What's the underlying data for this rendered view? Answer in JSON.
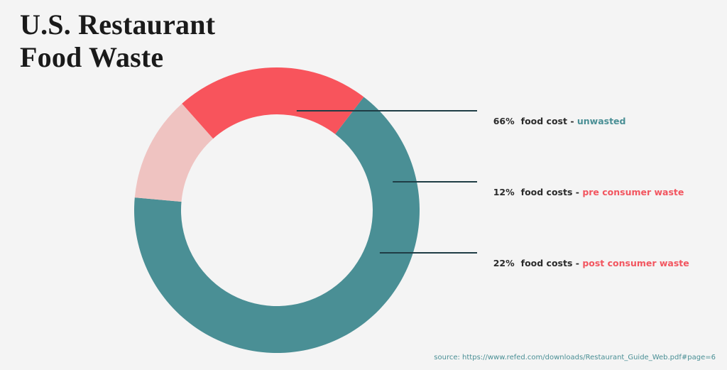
{
  "title_lines": [
    "U.S. Restaurant",
    "Food Waste"
  ],
  "source": "source: https://www.refed.com/downloads/Restaurant_Guide_Web.pdf#page=6",
  "chart_data": {
    "type": "pie",
    "donut": true,
    "title": "U.S. Restaurant Food Waste",
    "slices": [
      {
        "label": "unwasted",
        "value": 66,
        "color": "#4a8f95"
      },
      {
        "label": "pre consumer waste",
        "value": 12,
        "color": "#efc3c1"
      },
      {
        "label": "post consumer waste",
        "value": 22,
        "color": "#f8545c"
      }
    ],
    "annotations": [
      {
        "pct": "66%",
        "text": "food cost - ",
        "category": "unwasted",
        "category_color": "#4a8f95"
      },
      {
        "pct": "12%",
        "text": "food costs - ",
        "category": "pre consumer waste",
        "category_color": "#f2555f"
      },
      {
        "pct": "22%",
        "text": "food costs - ",
        "category": "post consumer waste",
        "category_color": "#f2555f"
      }
    ]
  }
}
